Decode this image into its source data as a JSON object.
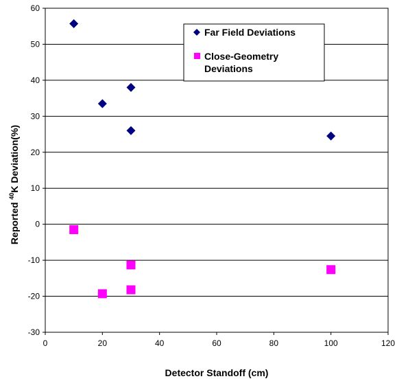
{
  "chart_data": {
    "type": "scatter",
    "title": "",
    "xlabel": "Detector Standoff (cm)",
    "ylabel": {
      "before": "Reported ",
      "superscript": "40",
      "after": "K Deviation(%)"
    },
    "xlim": [
      0,
      120
    ],
    "ylim": [
      -30,
      60
    ],
    "xticks": [
      "0",
      "20",
      "40",
      "60",
      "80",
      "100",
      "120"
    ],
    "yticks": [
      "-30",
      "-20",
      "-10",
      "0",
      "10",
      "20",
      "30",
      "40",
      "50",
      "60"
    ],
    "grid": "horizontal",
    "legend_position": "top-right",
    "series": [
      {
        "name": "Far Field Deviations",
        "marker": "diamond",
        "color": "#000080",
        "points": [
          {
            "x": 10,
            "y": 55.7
          },
          {
            "x": 20,
            "y": 33.5
          },
          {
            "x": 30,
            "y": 38.0
          },
          {
            "x": 30,
            "y": 26.0
          },
          {
            "x": 100,
            "y": 24.5
          }
        ]
      },
      {
        "name": "Close-Geometry Deviations",
        "legend_lines": [
          "Close-Geometry",
          "Deviations"
        ],
        "marker": "square",
        "color": "#ff00ff",
        "points": [
          {
            "x": 10,
            "y": -1.5
          },
          {
            "x": 20,
            "y": -19.3
          },
          {
            "x": 30,
            "y": -11.3
          },
          {
            "x": 30,
            "y": -18.2
          },
          {
            "x": 100,
            "y": -12.6
          }
        ]
      }
    ]
  }
}
